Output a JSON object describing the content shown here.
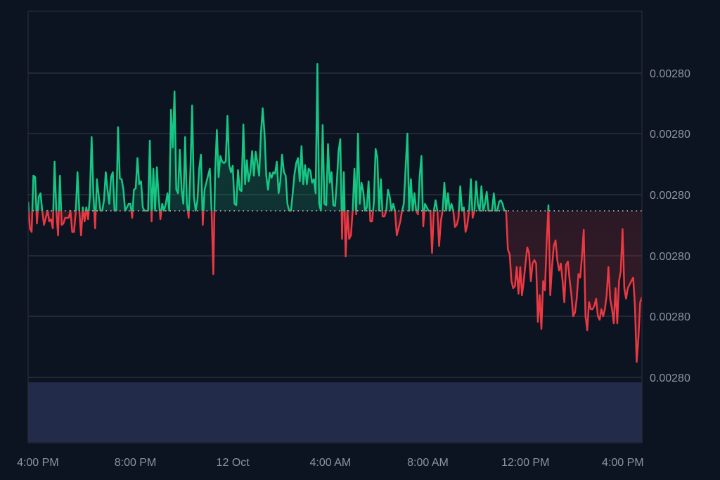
{
  "chart_data": {
    "type": "line",
    "title": "",
    "xlabel": "",
    "ylabel": "",
    "x_range": [
      "11 Oct 15:36",
      "12 Oct 16:47"
    ],
    "ylim": [
      0.00279763,
      0.00280284
    ],
    "baseline": 0.0028,
    "grid": true,
    "legend": "none",
    "colors": {
      "background": "#0d1421",
      "up": "#16c784",
      "down": "#ea3943",
      "grid": "#2a2f3b",
      "label": "#8b93a3",
      "volume": "#222c4a",
      "baseline": "#c8ccd4"
    },
    "y_ticks": [
      {
        "label": "0.00280",
        "value": 0.00280196
      },
      {
        "label": "0.00280",
        "value": 0.0028011
      },
      {
        "label": "0.00280",
        "value": 0.00280023
      },
      {
        "label": "0.00280",
        "value": 0.00279936
      },
      {
        "label": "0.00280",
        "value": 0.0027985
      },
      {
        "label": "0.00280",
        "value": 0.00279763
      }
    ],
    "x_ticks": [
      {
        "label": "4:00 PM",
        "time": "11 Oct 16:00"
      },
      {
        "label": "8:00 PM",
        "time": "11 Oct 20:00"
      },
      {
        "label": "12 Oct",
        "time": "12 Oct 00:00"
      },
      {
        "label": "4:00 AM",
        "time": "12 Oct 04:00"
      },
      {
        "label": "8:00 AM",
        "time": "12 Oct 08:00"
      },
      {
        "label": "12:00 PM",
        "time": "12 Oct 12:00"
      },
      {
        "label": "4:00 PM",
        "time": "12 Oct 16:00"
      }
    ],
    "values": [
      0.00280013,
      0.00279975,
      0.0027997,
      0.0028005,
      0.00280048,
      0.00279982,
      0.0028002,
      0.00280025,
      0.0028,
      0.0027998,
      0.0027999,
      0.0028,
      0.00279985,
      0.00279988,
      0.00279975,
      0.0028007,
      0.0028,
      0.00279965,
      0.0028005,
      0.0027998,
      0.00279982,
      0.0027999,
      0.0027999,
      0.0027999,
      0.0028,
      0.0027997,
      0.0027997,
      0.00279997,
      0.00280055,
      0.0028,
      0.00279965,
      0.00280005,
      0.00279985,
      0.00280005,
      0.00279988,
      0.0028002,
      0.00280105,
      0.00280025,
      0.00279975,
      0.00280045,
      0.00280022,
      0.0028,
      0.0028,
      0.00280015,
      0.00280055,
      0.0028003,
      0.0028001,
      0.00280048,
      0.00280055,
      0.0028,
      0.0028,
      0.00280119,
      0.00280046,
      0.00280045,
      0.0028003,
      0.0028,
      0.00280005,
      0.0028001,
      0.0028001,
      0.0027999,
      0.0028003,
      0.00280032,
      0.00280075,
      0.00280038,
      0.00280042,
      0.00280005,
      0.0028,
      0.0028,
      0.0028,
      0.002801,
      0.00279985,
      0.0028006,
      0.0028,
      0.00280062,
      0.0028002,
      0.00279988,
      0.0028001,
      0.0028,
      0.0028001,
      0.00280025,
      0.0028,
      0.00280144,
      0.0028009,
      0.0028017,
      0.0028003,
      0.00280025,
      0.00280087,
      0.0028003,
      0.0028001,
      0.00280105,
      0.0028001,
      0.0027999,
      0.00280058,
      0.0028015,
      0.0028002,
      0.0028,
      0.00280015,
      0.0028006,
      0.0028008,
      0.0027998,
      0.0028003,
      0.0028004,
      0.0028005,
      0.0028006,
      0.0028,
      0.0027991,
      0.00280052,
      0.00280115,
      0.00280048,
      0.00280078,
      0.0028007,
      0.00280068,
      0.0028007,
      0.00280135,
      0.00280065,
      0.00280055,
      0.00280064,
      0.0028001,
      0.00280008,
      0.00280058,
      0.0028003,
      0.00280028,
      0.00280123,
      0.00280038,
      0.00280072,
      0.00280042,
      0.00280055,
      0.00280085,
      0.0028005,
      0.00280084,
      0.00280068,
      0.0028005,
      0.0028011,
      0.00280146,
      0.0028011,
      0.0028005,
      0.0028003,
      0.00280054,
      0.00280047,
      0.00280055,
      0.00280053,
      0.0028007,
      0.00280025,
      0.00280042,
      0.0028008,
      0.00280055,
      0.0028005,
      0.0028001,
      0.0028,
      0.0028,
      0.00280025,
      0.00280052,
      0.00280068,
      0.00280075,
      0.00280042,
      0.00280092,
      0.00280038,
      0.00280065,
      0.00280038,
      0.0028006,
      0.00280057,
      0.0028004,
      0.00280045,
      0.00280025,
      0.00280209,
      0.0028001,
      0.0028,
      0.00280122,
      0.0028001,
      0.00280008,
      0.00280095,
      0.0028004,
      0.00280055,
      0.00280008,
      0.00280007,
      0.0028004,
      0.00280085,
      0.00280102,
      0.0027996,
      0.00280055,
      0.00279935,
      0.0028,
      0.0027996,
      0.00279965,
      0.0028,
      0.0028006,
      0.00279995,
      0.0028011,
      0.0028001,
      0.0028004,
      0.00280028,
      0.0028,
      0.00280005,
      0.00280042,
      0.00279985,
      0.00279985,
      0.00280012,
      0.00280088,
      0.00280075,
      0.0028,
      0.00280045,
      0.00279992,
      0.00279992,
      0.0028,
      0.0028003,
      0.0028002,
      0.0028,
      0.0028001,
      0.0028,
      0.00279965,
      0.00279975,
      0.00279985,
      0.0028,
      0.0028001,
      0.0028006,
      0.0028011,
      0.0028,
      0.00280045,
      0.0028,
      0.00280025,
      0.0028,
      0.00279995,
      0.0028005,
      0.00280078,
      0.00279978,
      0.0028001,
      0.00280005,
      0.0028,
      0.0028,
      0.0027994,
      0.0028,
      0.00280015,
      0.0028,
      0.0027995,
      0.00279985,
      0.0028,
      0.0028004,
      0.0028,
      0.00280025,
      0.0028,
      0.0028001,
      0.0028,
      0.00279977,
      0.0027998,
      0.0027999,
      0.00280035,
      0.0028,
      0.00280005,
      0.0027997,
      0.0027998,
      0.0028,
      0.00280045,
      0.0027999,
      0.0028,
      0.00280042,
      0.0028001,
      0.0028,
      0.00280035,
      0.0028,
      0.0028001,
      0.00280027,
      0.0028,
      0.0028,
      0.0028,
      0.00280025,
      0.0028,
      0.0028,
      0.00280013,
      0.00280015,
      0.0028001,
      0.0028,
      0.0028,
      0.00279945,
      0.00279938,
      0.002799,
      0.0027989,
      0.00279893,
      0.0027992,
      0.00279882,
      0.0027992,
      0.0027988,
      0.002799,
      0.00279925,
      0.00279948,
      0.0027994,
      0.002799,
      0.00279925,
      0.0027993,
      0.00279925,
      0.00279842,
      0.0027988,
      0.00279832,
      0.002799,
      0.00279887,
      0.00279955,
      0.00280008,
      0.0027988,
      0.0027992,
      0.0027995,
      0.00279958,
      0.0027993,
      0.00279915,
      0.00279925,
      0.002799,
      0.0027987,
      0.00279923,
      0.00279928,
      0.00279902,
      0.0027988,
      0.0027985,
      0.00279855,
      0.00279875,
      0.0027991,
      0.00279905,
      0.00279935,
      0.00279973,
      0.0027985,
      0.0027983,
      0.0027987,
      0.0027986,
      0.0027986,
      0.00279865,
      0.00279875,
      0.0027985,
      0.00279845,
      0.0027986,
      0.0027985,
      0.0027986,
      0.0027988,
      0.0027992,
      0.00279875,
      0.0027986,
      0.0027984,
      0.0027989,
      0.0027984,
      0.002799,
      0.00279915,
      0.00279974,
      0.0027989,
      0.00279875,
      0.0027989,
      0.00279895,
      0.002799,
      0.00279905,
      0.00279865,
      0.00279785,
      0.0027982,
      0.0027987,
      0.00279877
    ]
  }
}
